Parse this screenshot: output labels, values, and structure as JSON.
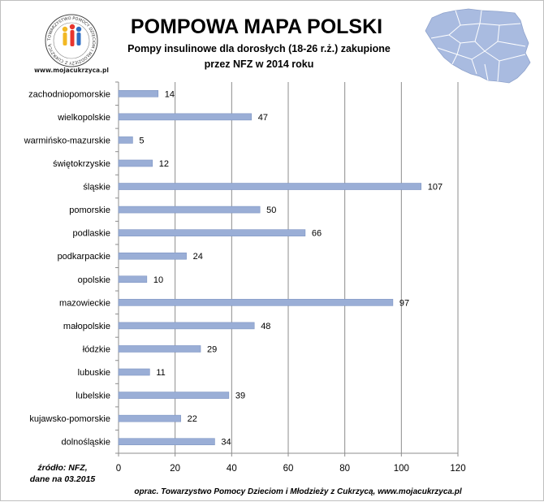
{
  "header": {
    "title": "POMPOWA MAPA POLSKI",
    "subtitle_line1": "Pompy insulinowe dla dorosłych (18-26 r.ż.) zakupione",
    "subtitle_line2": "przez NFZ w 2014 roku"
  },
  "logo": {
    "ring_text": "TOWARZYSTWO POMOCY DZIECIOM I MŁODZIEŻY Z CUKRZYCĄ",
    "url_text": "www.mojacukrzyca.pl"
  },
  "footer": {
    "source_line1": "źródło: NFZ,",
    "source_line2": "dane na 03.2015",
    "credit": "oprac. Towarzystwo  Pomocy Dzieciom i Młodzieży z Cukrzycą, www.mojacukrzyca.pl"
  },
  "colors": {
    "bar": "#9aaed6",
    "bar_stroke": "#7e95c3",
    "map": "#a9bbe0",
    "map_lines": "#ffffff"
  },
  "chart_data": {
    "type": "bar",
    "orientation": "horizontal",
    "title": "POMPOWA MAPA POLSKI",
    "categories": [
      "zachodniopomorskie",
      "wielkopolskie",
      "warmińsko-mazurskie",
      "świętokrzyskie",
      "śląskie",
      "pomorskie",
      "podlaskie",
      "podkarpackie",
      "opolskie",
      "mazowieckie",
      "małopolskie",
      "łódzkie",
      "lubuskie",
      "lubelskie",
      "kujawsko-pomorskie",
      "dolnośląskie"
    ],
    "values": [
      14,
      47,
      5,
      12,
      107,
      50,
      66,
      24,
      10,
      97,
      48,
      29,
      11,
      39,
      22,
      34
    ],
    "xlim": [
      0,
      120
    ],
    "xticks": [
      0,
      20,
      40,
      60,
      80,
      100,
      120
    ],
    "xlabel": "",
    "ylabel": "",
    "grid": "vertical",
    "data_labels": true
  }
}
